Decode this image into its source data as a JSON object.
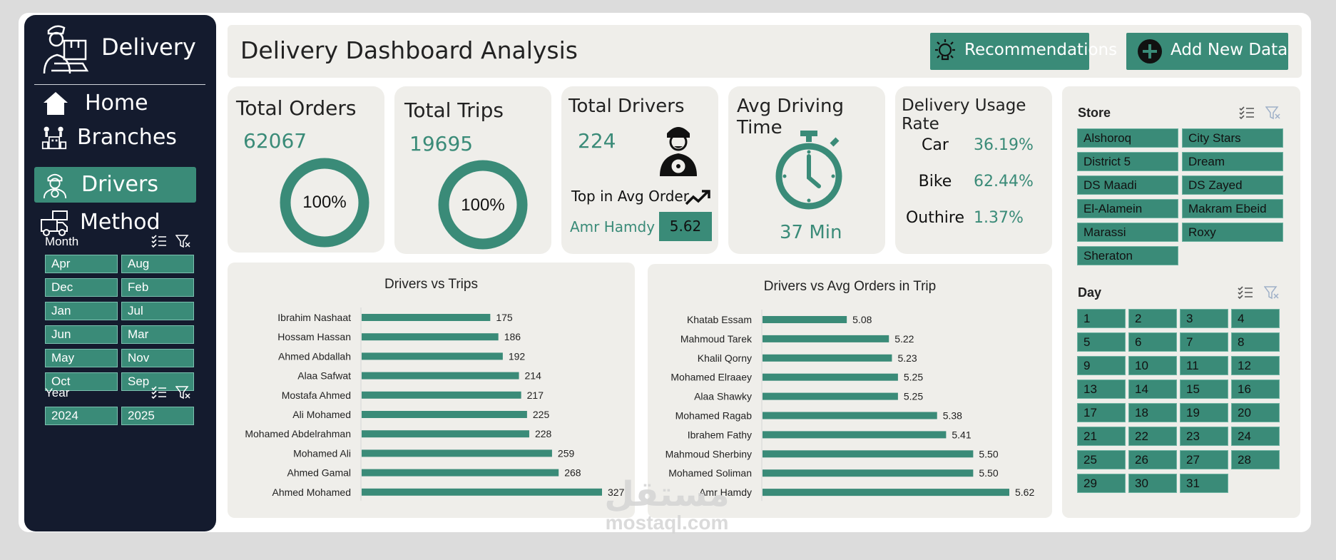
{
  "sidebar": {
    "brand": "Delivery",
    "nav": [
      {
        "label": "Home",
        "icon": "home-icon",
        "active": false
      },
      {
        "label": "Branches",
        "icon": "branches-icon",
        "active": false
      },
      {
        "label": "Drivers",
        "icon": "driver-icon",
        "active": true
      },
      {
        "label": "Method",
        "icon": "delivery-truck-icon",
        "active": false
      }
    ],
    "month_slicer": {
      "title": "Month",
      "items": [
        "Apr",
        "Aug",
        "Dec",
        "Feb",
        "Jan",
        "Jul",
        "Jun",
        "Mar",
        "May",
        "Nov",
        "Oct",
        "Sep"
      ]
    },
    "year_slicer": {
      "title": "Year",
      "items": [
        "2024",
        "2025"
      ]
    }
  },
  "header": {
    "title": "Delivery Dashboard Analysis",
    "recommendations_label": "Recommendations",
    "add_data_label": "Add New Data"
  },
  "kpis": {
    "total_orders": {
      "title": "Total Orders",
      "value": "62067",
      "ring": "100%",
      "ring_fraction": 1.0
    },
    "total_trips": {
      "title": "Total Trips",
      "value": "19695",
      "ring": "100%",
      "ring_fraction": 1.0
    },
    "total_drivers": {
      "title": "Total Drivers",
      "value": "224",
      "top_label": "Top in Avg Order",
      "top_name": "Amr Hamdy",
      "top_value": "5.62"
    },
    "avg_driving_time": {
      "title": "Avg Driving Time",
      "value": "37 Min"
    },
    "usage_rate": {
      "title": "Delivery Usage Rate",
      "rows": [
        {
          "label": "Car",
          "value": "36.19%"
        },
        {
          "label": "Bike",
          "value": "62.44%"
        },
        {
          "label": "Outhire",
          "value": "1.37%"
        }
      ]
    }
  },
  "colors": {
    "accent": "#3a8b78",
    "sidebar": "#141b2e",
    "panel": "#efeeea"
  },
  "chart_data": [
    {
      "type": "bar",
      "orientation": "horizontal",
      "title": "Drivers vs Trips",
      "categories": [
        "Ibrahim Nashaat",
        "Hossam Hassan",
        "Ahmed Abdallah",
        "Alaa Safwat",
        "Mostafa Ahmed",
        "Ali Mohamed",
        "Mohamed Abdelrahman",
        "Mohamed Ali",
        "Ahmed Gamal",
        "Ahmed Mohamed"
      ],
      "values": [
        175,
        186,
        192,
        214,
        217,
        225,
        228,
        259,
        268,
        327
      ],
      "xlim": [
        0,
        327
      ]
    },
    {
      "type": "bar",
      "orientation": "horizontal",
      "title": "Drivers vs Avg Orders in Trip",
      "categories": [
        "Khatab Essam",
        "Mahmoud Tarek",
        "Khalil Qorny",
        "Mohamed Elraaey",
        "Alaa Shawky",
        "Mohamed Ragab",
        "Ibrahem Fathy",
        "Mahmoud Sherbiny",
        "Mohamed Soliman",
        "Amr Hamdy"
      ],
      "values": [
        5.08,
        5.22,
        5.23,
        5.25,
        5.25,
        5.38,
        5.41,
        5.5,
        5.5,
        5.62
      ],
      "labels": [
        "5.08",
        "5.22",
        "5.23",
        "5.25",
        "5.25",
        "5.38",
        "5.41",
        "5.50",
        "5.50",
        "5.62"
      ],
      "xlim": [
        4.8,
        5.62
      ]
    }
  ],
  "store_slicer": {
    "title": "Store",
    "items": [
      "Alshoroq",
      "City Stars",
      "District 5",
      "Dream",
      "DS Maadi",
      "DS Zayed",
      "El-Alamein",
      "Makram Ebeid",
      "Marassi",
      "Roxy",
      "Sheraton"
    ]
  },
  "day_slicer": {
    "title": "Day",
    "items": [
      "1",
      "2",
      "3",
      "4",
      "5",
      "6",
      "7",
      "8",
      "9",
      "10",
      "11",
      "12",
      "13",
      "14",
      "15",
      "16",
      "17",
      "18",
      "19",
      "20",
      "21",
      "22",
      "23",
      "24",
      "25",
      "26",
      "27",
      "28",
      "29",
      "30",
      "31"
    ]
  },
  "watermark": {
    "arabic": "مستقل",
    "latin": "mostaql.com"
  }
}
